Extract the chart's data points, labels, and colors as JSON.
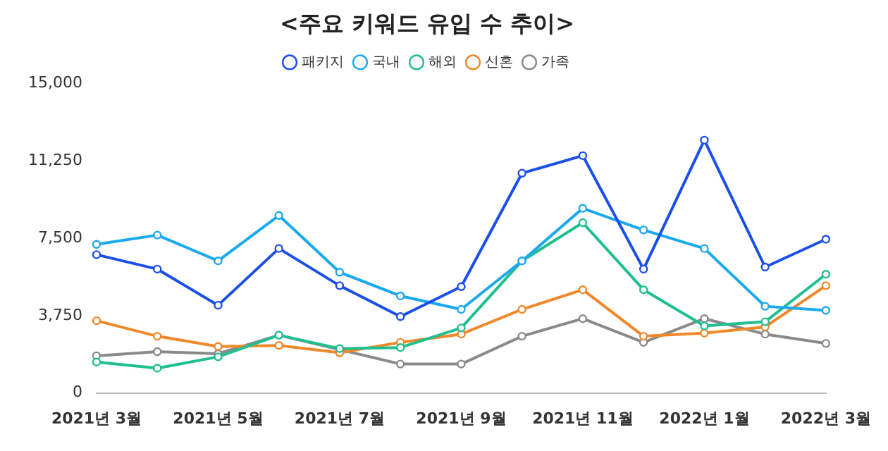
{
  "chart_data": {
    "type": "line",
    "title": "<주요 키워드 유입 수 추이>",
    "categories": [
      "2021년 3월",
      null,
      "2021년 5월",
      null,
      "2021년 7월",
      null,
      "2021년 9월",
      null,
      "2021년 11월",
      null,
      "2022년 1월",
      null,
      "2022년 3월"
    ],
    "series": [
      {
        "name": "패키지",
        "color": "#1a4fe8",
        "values": [
          6700,
          6000,
          4250,
          7000,
          5200,
          3700,
          5150,
          10650,
          11500,
          6000,
          12250,
          6100,
          7450
        ]
      },
      {
        "name": "국내",
        "color": "#1aa9f0",
        "values": [
          7200,
          7650,
          6400,
          8600,
          5850,
          4700,
          4050,
          6400,
          8950,
          7900,
          7000,
          4200,
          4000
        ]
      },
      {
        "name": "해외",
        "color": "#1fbf8f",
        "values": [
          1500,
          1200,
          1750,
          2800,
          2150,
          2200,
          3150,
          6400,
          8250,
          5000,
          3250,
          3450,
          5750
        ]
      },
      {
        "name": "신혼",
        "color": "#f0882a",
        "values": [
          3500,
          2750,
          2250,
          2300,
          1950,
          2450,
          2850,
          4050,
          5000,
          2750,
          2900,
          3200,
          5200
        ]
      },
      {
        "name": "가족",
        "color": "#8a8a8a",
        "values": [
          1800,
          2000,
          1900,
          2800,
          2100,
          1400,
          1400,
          2750,
          3600,
          2450,
          3600,
          2850,
          2400
        ]
      }
    ],
    "ylim": [
      0,
      15000
    ],
    "yticks": [
      {
        "value": 0,
        "label": "0"
      },
      {
        "value": 3750,
        "label": "3,750"
      },
      {
        "value": 7500,
        "label": "7,500"
      },
      {
        "value": 11250,
        "label": "11,250"
      },
      {
        "value": 15000,
        "label": "15,000"
      }
    ],
    "grid": false,
    "legend": "top",
    "marker": "circle",
    "line_style": "solid"
  }
}
